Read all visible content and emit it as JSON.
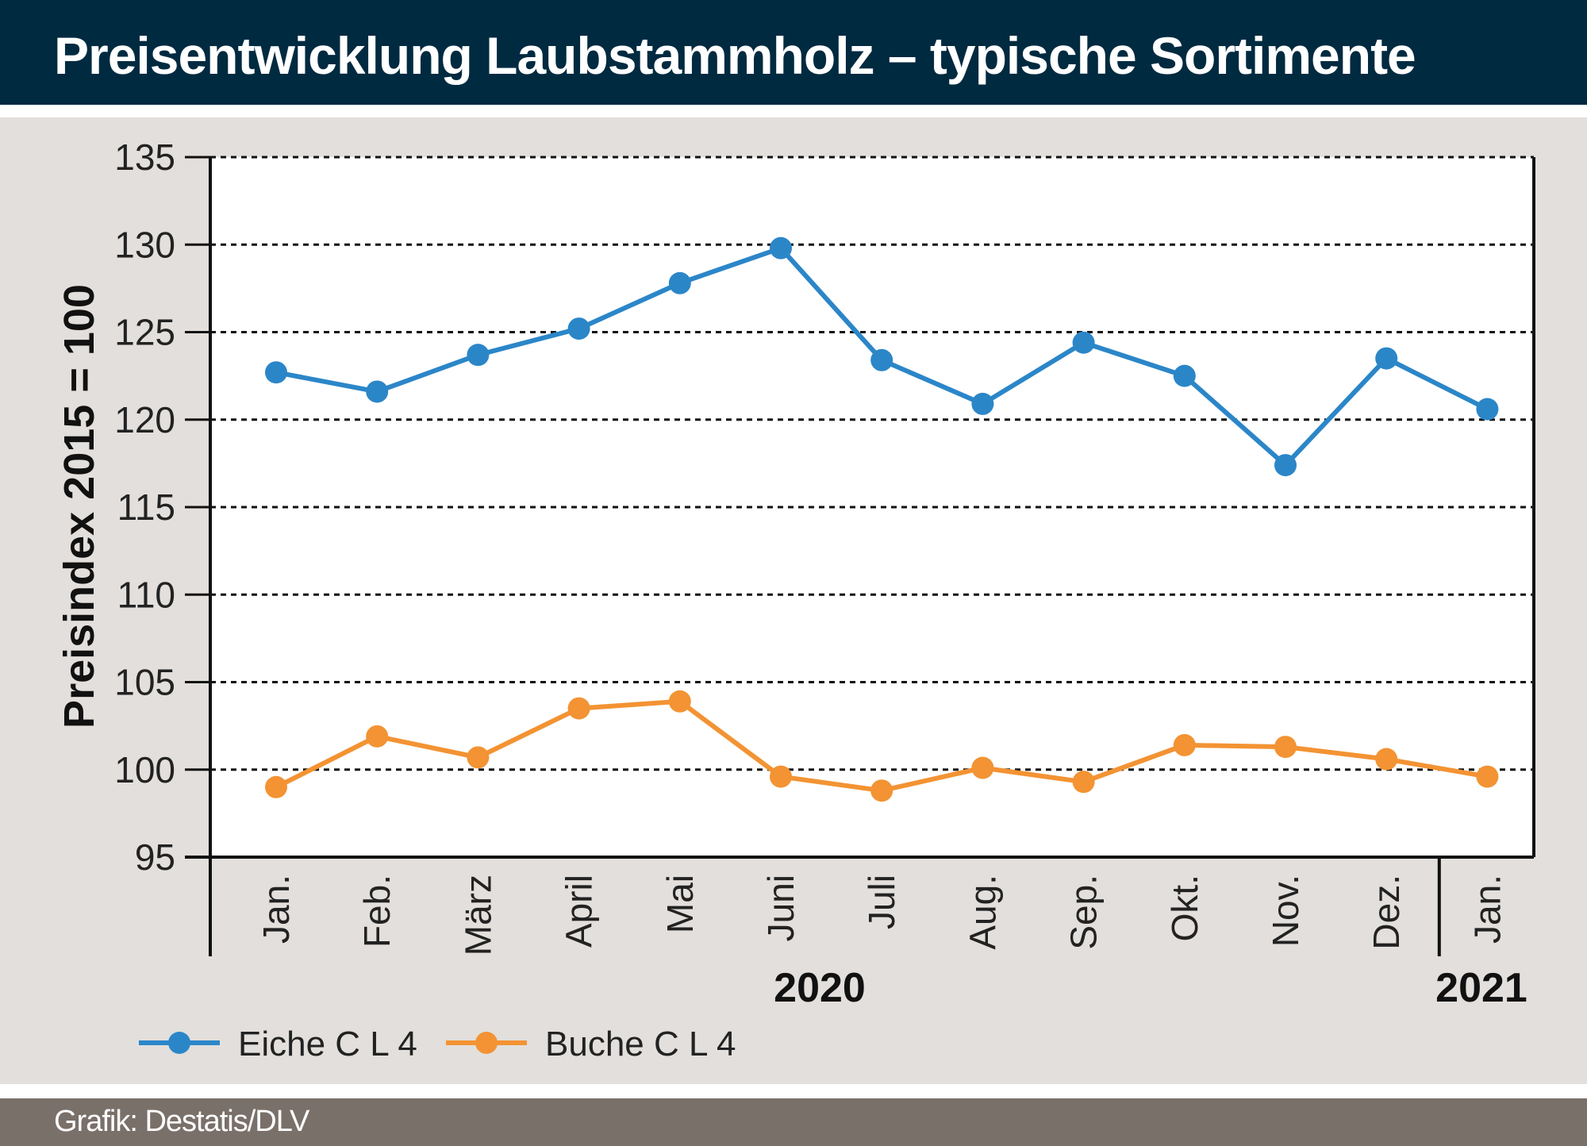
{
  "header": {
    "title": "Preisentwicklung Laubstammholz – typische Sortimente"
  },
  "footer": {
    "source": "Grafik: Destatis/DLV"
  },
  "chart_data": {
    "type": "line",
    "title": "Preisentwicklung Laubstammholz – typische Sortimente",
    "ylabel": "Preisindex 2015 = 100",
    "xlabel": "",
    "ylim": [
      95,
      135
    ],
    "yticks": [
      95,
      100,
      105,
      110,
      115,
      120,
      125,
      130,
      135
    ],
    "grid": true,
    "categories": [
      "Jan.",
      "Feb.",
      "März",
      "April",
      "Mai",
      "Juni",
      "Juli",
      "Aug.",
      "Sep.",
      "Okt.",
      "Nov.",
      "Dez.",
      "Jan."
    ],
    "year_labels": [
      {
        "label": "2020",
        "from": 0,
        "to": 11
      },
      {
        "label": "2021",
        "from": 12,
        "to": 12
      }
    ],
    "legend_position": "bottom-left",
    "series": [
      {
        "name": "Eiche C L 4",
        "color": "#2b86c8",
        "values": [
          122.7,
          121.6,
          123.7,
          125.2,
          127.8,
          129.8,
          123.4,
          120.9,
          124.4,
          122.5,
          117.4,
          123.5,
          120.6
        ]
      },
      {
        "name": "Buche C L 4",
        "color": "#f39333",
        "values": [
          99.0,
          101.9,
          100.7,
          103.5,
          103.9,
          99.6,
          98.8,
          100.1,
          99.3,
          101.4,
          101.3,
          100.6,
          99.6
        ]
      }
    ]
  }
}
